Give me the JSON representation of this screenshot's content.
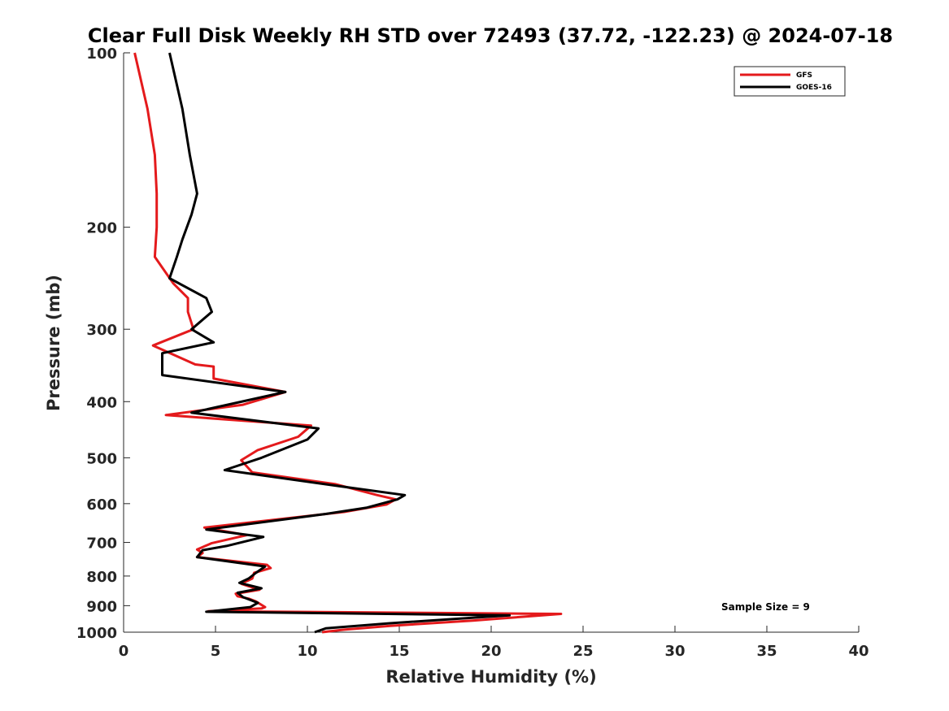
{
  "chart_data": {
    "type": "line",
    "title": "Clear Full Disk Weekly RH STD over 72493 (37.72, -122.23) @ 2024-07-18",
    "xlabel": "Relative Humidity (%)",
    "ylabel": "Pressure (mb)",
    "xlim": [
      0,
      40
    ],
    "ylim": [
      100,
      1000
    ],
    "y_scale": "log",
    "y_reversed": true,
    "xticks": [
      0,
      5,
      10,
      15,
      20,
      25,
      30,
      35,
      40
    ],
    "yticks": [
      100,
      200,
      300,
      400,
      500,
      600,
      700,
      800,
      900,
      1000
    ],
    "grid": false,
    "legend_position": "top-right",
    "annotation": "Sample Size = 9",
    "series": [
      {
        "name": "GFS",
        "color": "#e41a1c",
        "points": [
          [
            0.6,
            100
          ],
          [
            1.3,
            125
          ],
          [
            1.7,
            150
          ],
          [
            1.8,
            175
          ],
          [
            1.8,
            200
          ],
          [
            1.7,
            225
          ],
          [
            2.7,
            250
          ],
          [
            3.5,
            265
          ],
          [
            3.5,
            280
          ],
          [
            3.8,
            300
          ],
          [
            1.6,
            320
          ],
          [
            3.9,
            345
          ],
          [
            4.9,
            348
          ],
          [
            4.9,
            365
          ],
          [
            8.8,
            385
          ],
          [
            6.5,
            405
          ],
          [
            2.3,
            422
          ],
          [
            10.2,
            440
          ],
          [
            9.5,
            460
          ],
          [
            7.3,
            485
          ],
          [
            6.4,
            505
          ],
          [
            7.0,
            530
          ],
          [
            11.5,
            555
          ],
          [
            13.8,
            580
          ],
          [
            14.8,
            590
          ],
          [
            14.3,
            602
          ],
          [
            12.0,
            620
          ],
          [
            4.4,
            660
          ],
          [
            6.7,
            680
          ],
          [
            4.8,
            702
          ],
          [
            4.0,
            720
          ],
          [
            4.3,
            730
          ],
          [
            4.0,
            742
          ],
          [
            7.8,
            765
          ],
          [
            8.0,
            775
          ],
          [
            7.1,
            790
          ],
          [
            7.0,
            808
          ],
          [
            6.4,
            825
          ],
          [
            7.4,
            845
          ],
          [
            6.1,
            858
          ],
          [
            6.2,
            867
          ],
          [
            6.8,
            875
          ],
          [
            7.2,
            885
          ],
          [
            7.7,
            905
          ],
          [
            7.5,
            910
          ],
          [
            4.6,
            920
          ],
          [
            23.8,
            930
          ],
          [
            19.0,
            955
          ],
          [
            14.5,
            975
          ],
          [
            12.0,
            990
          ],
          [
            10.8,
            1000
          ]
        ]
      },
      {
        "name": "GOES-16",
        "color": "#000000",
        "points": [
          [
            2.5,
            100
          ],
          [
            3.2,
            125
          ],
          [
            3.6,
            150
          ],
          [
            4.0,
            175
          ],
          [
            3.7,
            190
          ],
          [
            3.2,
            210
          ],
          [
            2.9,
            225
          ],
          [
            2.5,
            245
          ],
          [
            4.5,
            265
          ],
          [
            4.8,
            280
          ],
          [
            3.7,
            300
          ],
          [
            4.9,
            316
          ],
          [
            2.1,
            330
          ],
          [
            2.1,
            360
          ],
          [
            8.8,
            385
          ],
          [
            3.7,
            418
          ],
          [
            10.6,
            445
          ],
          [
            10.0,
            465
          ],
          [
            7.5,
            500
          ],
          [
            5.5,
            525
          ],
          [
            11.8,
            560
          ],
          [
            15.3,
            580
          ],
          [
            14.9,
            590
          ],
          [
            13.2,
            610
          ],
          [
            11.0,
            625
          ],
          [
            4.5,
            665
          ],
          [
            7.6,
            685
          ],
          [
            5.6,
            710
          ],
          [
            4.3,
            722
          ],
          [
            4.0,
            742
          ],
          [
            7.7,
            770
          ],
          [
            7.2,
            790
          ],
          [
            6.8,
            808
          ],
          [
            6.3,
            822
          ],
          [
            7.5,
            840
          ],
          [
            6.2,
            855
          ],
          [
            6.5,
            870
          ],
          [
            7.3,
            890
          ],
          [
            6.9,
            905
          ],
          [
            4.5,
            922
          ],
          [
            21.0,
            935
          ],
          [
            14.5,
            965
          ],
          [
            11.0,
            985
          ],
          [
            10.4,
            1000
          ]
        ]
      }
    ]
  }
}
